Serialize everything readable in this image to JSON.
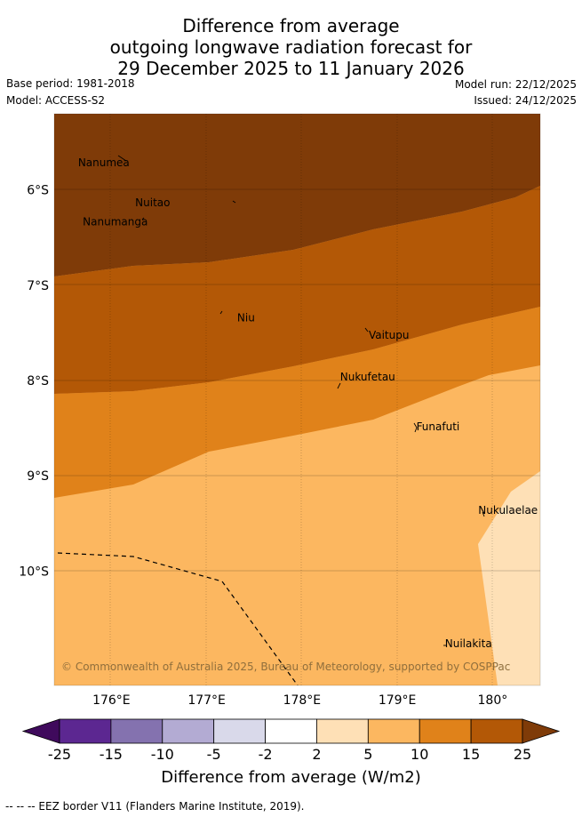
{
  "title": {
    "line1": "Difference from average",
    "line2": "outgoing longwave radiation forecast for",
    "line3": "29 December 2025 to 11 January 2026"
  },
  "meta": {
    "base_period": "Base period: 1981-2018",
    "model": "Model: ACCESS-S2",
    "model_run": "Model run: 22/12/2025",
    "issued": "Issued: 24/12/2025"
  },
  "map": {
    "lon_range": [
      175.4,
      180.5
    ],
    "lat_range": [
      -11.2,
      -5.2
    ],
    "lon_ticks": [
      176,
      177,
      178,
      179,
      180
    ],
    "lon_tick_labels": [
      "176°E",
      "177°E",
      "178°E",
      "179°E",
      "180°"
    ],
    "lat_ticks": [
      -6,
      -7,
      -8,
      -9,
      -10
    ],
    "lat_tick_labels": [
      "6°S",
      "7°S",
      "8°S",
      "9°S",
      "10°S"
    ],
    "places": [
      {
        "name": "Nanumea",
        "lon": 175.65,
        "lat": -5.75
      },
      {
        "name": "Nuitao",
        "lon": 176.25,
        "lat": -6.17
      },
      {
        "name": "Nanumanga",
        "lon": 175.7,
        "lat": -6.37
      },
      {
        "name": "Niu",
        "lon": 177.32,
        "lat": -7.38
      },
      {
        "name": "Vaitupu",
        "lon": 178.7,
        "lat": -7.56
      },
      {
        "name": "Nukufetau",
        "lon": 178.4,
        "lat": -8.0
      },
      {
        "name": "Funafuti",
        "lon": 179.2,
        "lat": -8.52
      },
      {
        "name": "Nukulaelae",
        "lon": 179.85,
        "lat": -9.4
      },
      {
        "name": "Nuilakita",
        "lon": 179.5,
        "lat": -10.8
      }
    ],
    "copyright": "© Commonwealth of Australia 2025, Bureau of Meteorology, supported by COSPPac"
  },
  "colorbar": {
    "title": "Difference from average (W/m2)",
    "tick_labels": [
      "-25",
      "-15",
      "-10",
      "-5",
      "-2",
      "2",
      "5",
      "10",
      "15",
      "25"
    ],
    "colors": [
      "#3f0a5c",
      "#5c2791",
      "#8472af",
      "#b3abd3",
      "#d9d9ea",
      "#ffffff",
      "#fee0b6",
      "#fcb760",
      "#e0821a",
      "#b35806",
      "#7f3b08"
    ]
  },
  "footer": "--  --  -- EEZ border V11 (Flanders Marine Institute, 2019)."
}
